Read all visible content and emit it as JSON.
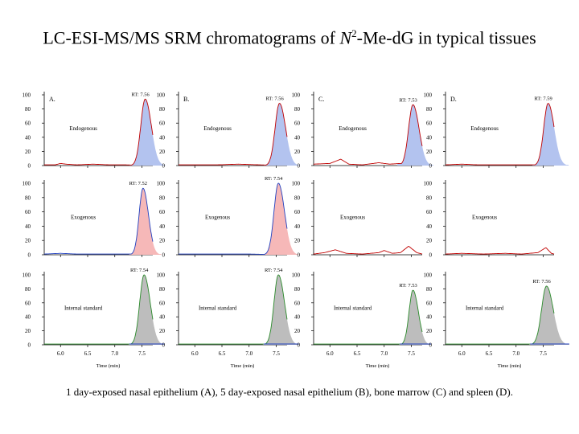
{
  "title": {
    "prefix": "LC-ESI-MS/MS SRM chromatograms of ",
    "italic": "N",
    "superscript": "2",
    "suffix": "-Me-dG in typical tissues"
  },
  "caption": "1 day-exposed nasal epithelium (A), 5 day-exposed nasal epithelium (B), bone marrow (C) and spleen (D).",
  "colors": {
    "endogenous_fill": "#b3c3ef",
    "exogenous_fill": "#f6b8b8",
    "internal_standard_fill": "#bdbdbd",
    "trace_red": "#c00000",
    "trace_blue": "#2040c0",
    "trace_green": "#2a8a2a",
    "axis": "#000000"
  },
  "chart_data": {
    "type": "line",
    "x_range": [
      5.7,
      7.7
    ],
    "y_range": [
      0,
      100
    ],
    "y_ticks": [
      0,
      20,
      40,
      60,
      80,
      100
    ],
    "x_ticks": [
      {
        "value": 6.0,
        "label": "6.0"
      },
      {
        "value": 6.5,
        "label": "6.5"
      },
      {
        "value": 7.0,
        "label": "7.0"
      },
      {
        "value": 7.5,
        "label": "7.5"
      }
    ],
    "xlabel": "Time (min)",
    "column_labels": [
      "A.",
      "B.",
      "C.",
      "D."
    ],
    "rows": [
      {
        "name": "Endogenous",
        "fill_key": "endogenous_fill"
      },
      {
        "name": "Exogenous",
        "fill_key": "exogenous_fill"
      },
      {
        "name": "Internal standard",
        "fill_key": "internal_standard_fill"
      }
    ],
    "panels": [
      {
        "row": 0,
        "col": 0,
        "label": "Endogenous",
        "rt": "RT: 7.56",
        "peak_rt": 7.56,
        "peak_height": 94,
        "peak_width": 0.09,
        "filled": true,
        "line_key": "trace_red",
        "baseline": [
          [
            5.7,
            1
          ],
          [
            5.9,
            1
          ],
          [
            6.0,
            3
          ],
          [
            6.1,
            2
          ],
          [
            6.3,
            1
          ],
          [
            6.6,
            2
          ],
          [
            6.9,
            1
          ],
          [
            7.2,
            1
          ],
          [
            7.7,
            0
          ]
        ]
      },
      {
        "row": 0,
        "col": 1,
        "label": "Endogenous",
        "rt": "RT: 7.56",
        "peak_rt": 7.56,
        "peak_height": 88,
        "peak_width": 0.09,
        "filled": true,
        "line_key": "trace_red",
        "baseline": [
          [
            5.7,
            1
          ],
          [
            6.0,
            1
          ],
          [
            6.4,
            1
          ],
          [
            6.8,
            2
          ],
          [
            7.2,
            1
          ],
          [
            7.7,
            0
          ]
        ]
      },
      {
        "row": 0,
        "col": 2,
        "label": "Endogenous",
        "rt": "RT: 7.53",
        "peak_rt": 7.53,
        "peak_height": 86,
        "peak_width": 0.09,
        "filled": true,
        "line_key": "trace_red",
        "baseline": [
          [
            5.7,
            2
          ],
          [
            6.0,
            3
          ],
          [
            6.2,
            9
          ],
          [
            6.35,
            2
          ],
          [
            6.6,
            1
          ],
          [
            6.9,
            4
          ],
          [
            7.1,
            2
          ],
          [
            7.3,
            3
          ],
          [
            7.7,
            1
          ]
        ]
      },
      {
        "row": 0,
        "col": 3,
        "label": "Endogenous",
        "rt": "RT: 7.59",
        "peak_rt": 7.59,
        "peak_height": 88,
        "peak_width": 0.09,
        "filled": true,
        "line_key": "trace_red",
        "baseline": [
          [
            5.7,
            1
          ],
          [
            6.0,
            2
          ],
          [
            6.3,
            1
          ],
          [
            6.8,
            1
          ],
          [
            7.2,
            1
          ],
          [
            7.7,
            1
          ]
        ]
      },
      {
        "row": 1,
        "col": 0,
        "label": "Exogenous",
        "rt": "RT: 7.52",
        "peak_rt": 7.52,
        "peak_height": 93,
        "peak_width": 0.08,
        "filled": true,
        "line_key": "trace_blue",
        "baseline": [
          [
            5.7,
            1
          ],
          [
            6.0,
            2
          ],
          [
            6.3,
            1
          ],
          [
            6.7,
            1
          ],
          [
            7.1,
            1
          ],
          [
            7.7,
            1
          ]
        ]
      },
      {
        "row": 1,
        "col": 1,
        "label": "Exogenous",
        "rt": "RT: 7.54",
        "peak_rt": 7.54,
        "peak_height": 100,
        "peak_width": 0.09,
        "filled": true,
        "line_key": "trace_blue",
        "baseline": [
          [
            5.7,
            1
          ],
          [
            6.0,
            1
          ],
          [
            6.5,
            1
          ],
          [
            7.0,
            1
          ],
          [
            7.7,
            0
          ]
        ]
      },
      {
        "row": 1,
        "col": 2,
        "label": "Exogenous",
        "rt": "",
        "peak_rt": 0,
        "peak_height": 0,
        "peak_width": 0,
        "filled": false,
        "line_key": "trace_red",
        "baseline": [
          [
            5.7,
            1
          ],
          [
            5.9,
            3
          ],
          [
            6.1,
            7
          ],
          [
            6.3,
            2
          ],
          [
            6.6,
            1
          ],
          [
            6.9,
            3
          ],
          [
            7.0,
            6
          ],
          [
            7.15,
            2
          ],
          [
            7.3,
            3
          ],
          [
            7.45,
            12
          ],
          [
            7.6,
            3
          ],
          [
            7.7,
            1
          ]
        ]
      },
      {
        "row": 1,
        "col": 3,
        "label": "Exogenous",
        "rt": "",
        "peak_rt": 0,
        "peak_height": 0,
        "peak_width": 0,
        "filled": false,
        "line_key": "trace_red",
        "baseline": [
          [
            5.7,
            1
          ],
          [
            6.0,
            2
          ],
          [
            6.4,
            1
          ],
          [
            6.8,
            2
          ],
          [
            7.1,
            1
          ],
          [
            7.4,
            3
          ],
          [
            7.55,
            10
          ],
          [
            7.65,
            2
          ],
          [
            7.7,
            1
          ]
        ]
      },
      {
        "row": 2,
        "col": 0,
        "label": "Internal standard",
        "rt": "RT: 7.54",
        "peak_rt": 7.54,
        "peak_height": 100,
        "peak_width": 0.09,
        "filled": true,
        "line_key": "trace_green",
        "baseline": [
          [
            5.7,
            1
          ],
          [
            7.7,
            1
          ]
        ]
      },
      {
        "row": 2,
        "col": 1,
        "label": "Internal standard",
        "rt": "RT: 7.54",
        "peak_rt": 7.54,
        "peak_height": 100,
        "peak_width": 0.09,
        "filled": true,
        "line_key": "trace_green",
        "baseline": [
          [
            5.7,
            1
          ],
          [
            7.7,
            1
          ]
        ]
      },
      {
        "row": 2,
        "col": 2,
        "label": "Internal standard",
        "rt": "RT: 7.53",
        "peak_rt": 7.53,
        "peak_height": 78,
        "peak_width": 0.08,
        "filled": true,
        "line_key": "trace_green",
        "baseline": [
          [
            5.7,
            1
          ],
          [
            7.7,
            1
          ]
        ]
      },
      {
        "row": 2,
        "col": 3,
        "label": "Internal standard",
        "rt": "RT: 7.56",
        "peak_rt": 7.56,
        "peak_height": 84,
        "peak_width": 0.1,
        "filled": true,
        "line_key": "trace_green",
        "baseline": [
          [
            5.7,
            1
          ],
          [
            7.7,
            1
          ]
        ]
      }
    ]
  }
}
